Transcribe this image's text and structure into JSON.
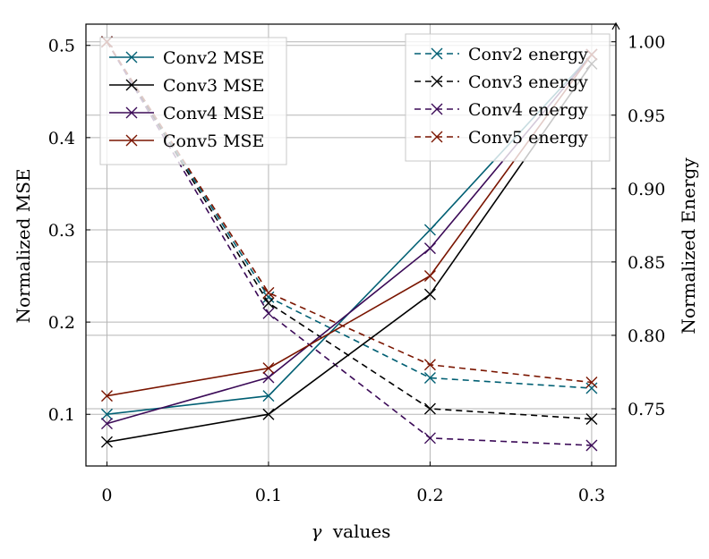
{
  "chart_data": {
    "type": "line",
    "xlabel_symbol": "γ",
    "xlabel_rest": "values",
    "ylabel_left": "Normalized MSE",
    "ylabel_right": "Normalized Energy",
    "x": [
      0,
      0.1,
      0.2,
      0.3
    ],
    "x_ticks": [
      0,
      0.1,
      0.2,
      0.3
    ],
    "x_tick_labels": [
      "0",
      "0.1",
      "0.2",
      "0.3"
    ],
    "xlim": [
      -0.013,
      0.315
    ],
    "y_left_ticks": [
      0.1,
      0.2,
      0.3,
      0.4,
      0.5
    ],
    "y_left_tick_labels": [
      "0.1",
      "0.2",
      "0.3",
      "0.4",
      "0.5"
    ],
    "ylim_left": [
      0.044,
      0.523
    ],
    "y_right_ticks": [
      0.75,
      0.8,
      0.85,
      0.9,
      0.95,
      1.0
    ],
    "y_right_tick_labels": [
      "0.75",
      "0.80",
      "0.85",
      "0.90",
      "0.95",
      "1.00"
    ],
    "ylim_right": [
      0.711,
      1.012
    ],
    "grid": true,
    "legend_left_position": "top-left",
    "legend_right_position": "top-right",
    "series_mse": [
      {
        "name": "Conv2 MSE",
        "color": "#005f73",
        "values": [
          0.1,
          0.12,
          0.3,
          0.49
        ]
      },
      {
        "name": "Conv3 MSE",
        "color": "#000000",
        "values": [
          0.07,
          0.1,
          0.23,
          0.48
        ]
      },
      {
        "name": "Conv4 MSE",
        "color": "#3b0a57",
        "values": [
          0.09,
          0.14,
          0.28,
          0.49
        ]
      },
      {
        "name": "Conv5 MSE",
        "color": "#7a1500",
        "values": [
          0.12,
          0.15,
          0.25,
          0.49
        ]
      }
    ],
    "series_energy": [
      {
        "name": "Conv2 energy",
        "color": "#005f73",
        "values": [
          1.0,
          0.826,
          0.771,
          0.764
        ]
      },
      {
        "name": "Conv3 energy",
        "color": "#000000",
        "values": [
          1.0,
          0.822,
          0.75,
          0.743
        ]
      },
      {
        "name": "Conv4 energy",
        "color": "#3b0a57",
        "values": [
          1.0,
          0.815,
          0.73,
          0.725
        ]
      },
      {
        "name": "Conv5 energy",
        "color": "#7a1500",
        "values": [
          1.0,
          0.829,
          0.78,
          0.768
        ]
      }
    ]
  }
}
